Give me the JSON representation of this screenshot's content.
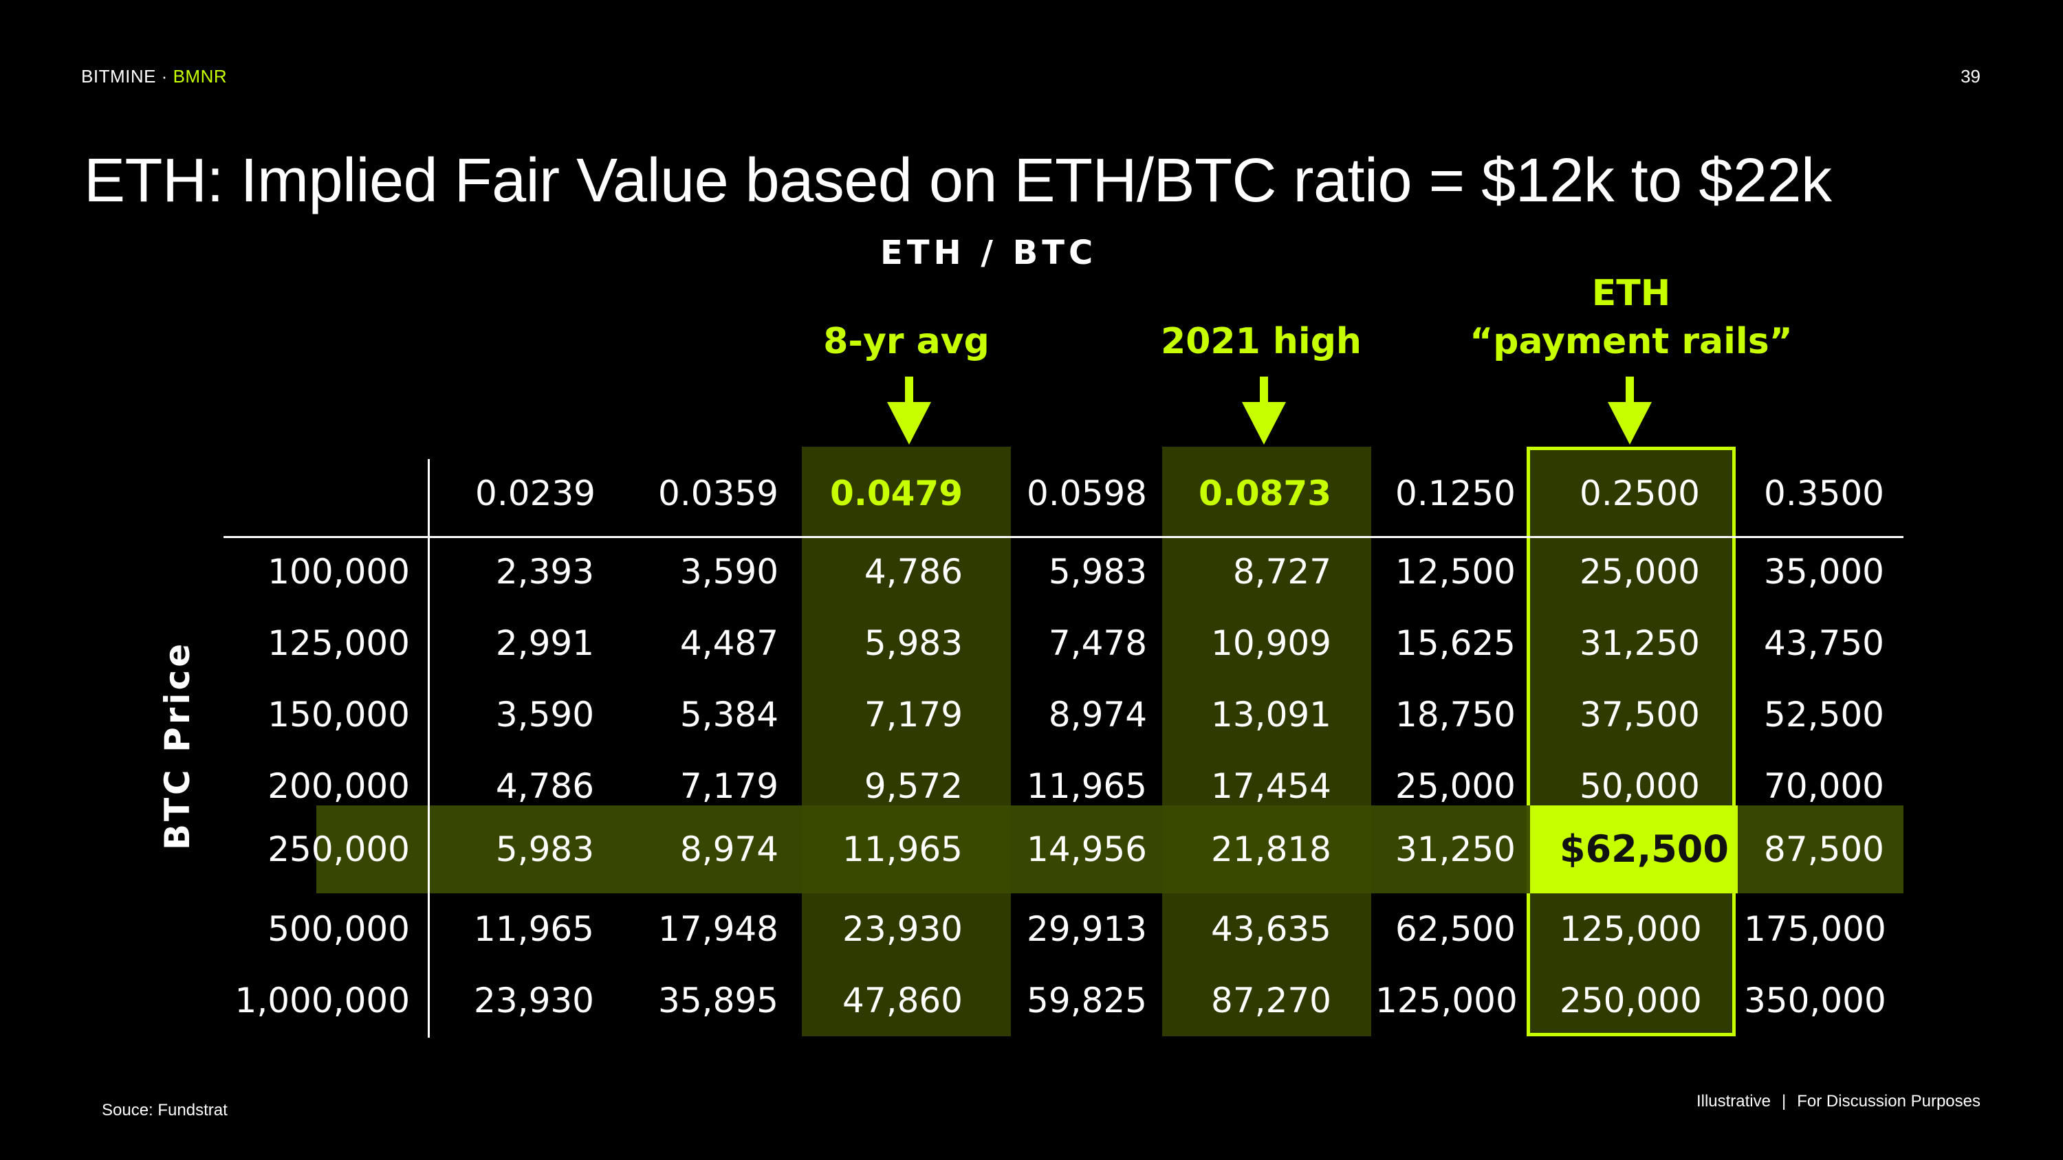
{
  "header": {
    "brand": "BITMINE",
    "brand_separator": " · ",
    "ticker": "BMNR",
    "page_number": "39"
  },
  "title": "ETH: Implied Fair Value based on ETH/BTC ratio = $12k to $22k",
  "axis_labels": {
    "columns": "ETH / BTC",
    "rows": "BTC Price"
  },
  "callouts": [
    {
      "line1": "8-yr avg",
      "line2": ""
    },
    {
      "line1": "2021 high",
      "line2": ""
    },
    {
      "line1": "ETH",
      "line2": "“payment rails”"
    }
  ],
  "table": {
    "column_headers": [
      "0.0239",
      "0.0359",
      "0.0479",
      "0.0598",
      "0.0873",
      "0.1250",
      "0.2500",
      "0.3500"
    ],
    "rows": [
      {
        "btc": "100,000",
        "values": [
          "2,393",
          "3,590",
          "4,786",
          "5,983",
          "8,727",
          "12,500",
          "25,000",
          "35,000"
        ]
      },
      {
        "btc": "125,000",
        "values": [
          "2,991",
          "4,487",
          "5,983",
          "7,478",
          "10,909",
          "15,625",
          "31,250",
          "43,750"
        ]
      },
      {
        "btc": "150,000",
        "values": [
          "3,590",
          "5,384",
          "7,179",
          "8,974",
          "13,091",
          "18,750",
          "37,500",
          "52,500"
        ]
      },
      {
        "btc": "200,000",
        "values": [
          "4,786",
          "7,179",
          "9,572",
          "11,965",
          "17,454",
          "25,000",
          "50,000",
          "70,000"
        ]
      },
      {
        "btc": "250,000",
        "values": [
          "5,983",
          "8,974",
          "11,965",
          "14,956",
          "21,818",
          "31,250",
          "$62,500",
          "87,500"
        ]
      },
      {
        "btc": "500,000",
        "values": [
          "11,965",
          "17,948",
          "23,930",
          "29,913",
          "43,635",
          "62,500",
          "125,000",
          "175,000"
        ]
      },
      {
        "btc": "1,000,000",
        "values": [
          "23,930",
          "35,895",
          "47,860",
          "59,825",
          "87,270",
          "125,000",
          "250,000",
          "350,000"
        ]
      }
    ],
    "highlighted_columns": [
      "0.0479",
      "0.0873",
      "0.2500"
    ],
    "highlighted_row": "250,000",
    "highlighted_cell": "$62,500"
  },
  "footer": {
    "source": "Souce: Fundstrat",
    "note_left": "Illustrative",
    "note_separator": "|",
    "note_right": "For Discussion Purposes"
  },
  "colors": {
    "background": "#000000",
    "accent": "#c8ff00",
    "highlight_fill": "#2e3a00",
    "row_highlight_fill": "#3a4a00"
  }
}
